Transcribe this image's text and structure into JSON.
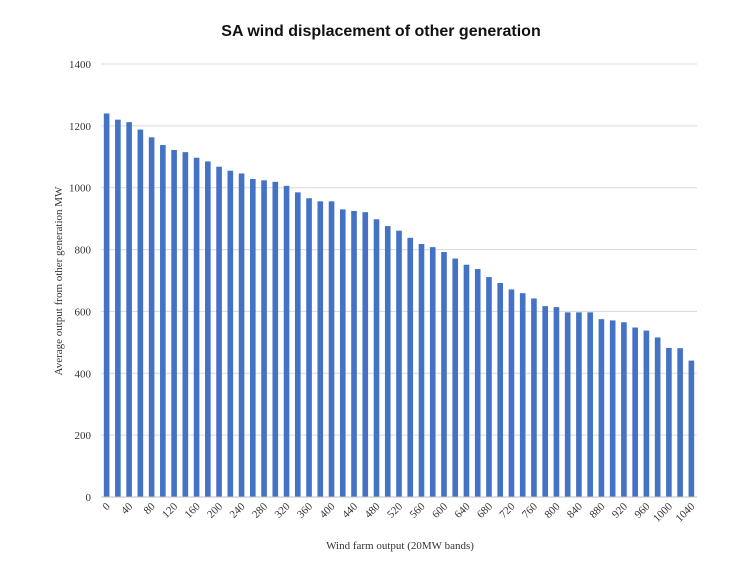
{
  "chart_data": {
    "type": "bar",
    "title": "SA wind displacement of other generation",
    "xlabel": "Wind farm output (20MW bands)",
    "ylabel": "Average output from other generation MW",
    "ylim": [
      0,
      1400
    ],
    "yticks": [
      "0",
      "200",
      "400",
      "600",
      "800",
      "1000",
      "1200",
      "1400"
    ],
    "grid": true,
    "legend": "none",
    "bar_color": "#4472C4",
    "categories": [
      "0",
      "20",
      "40",
      "60",
      "80",
      "100",
      "120",
      "140",
      "160",
      "180",
      "200",
      "220",
      "240",
      "260",
      "280",
      "300",
      "320",
      "340",
      "360",
      "380",
      "400",
      "420",
      "440",
      "460",
      "480",
      "500",
      "520",
      "540",
      "560",
      "580",
      "600",
      "620",
      "640",
      "660",
      "680",
      "700",
      "720",
      "740",
      "760",
      "780",
      "800",
      "820",
      "840",
      "860",
      "880",
      "900",
      "920",
      "940",
      "960",
      "980",
      "1000",
      "1020",
      "1040"
    ],
    "values": [
      1240,
      1220,
      1212,
      1188,
      1163,
      1138,
      1122,
      1115,
      1097,
      1085,
      1068,
      1055,
      1046,
      1028,
      1024,
      1019,
      1006,
      985,
      966,
      956,
      956,
      930,
      925,
      921,
      898,
      876,
      861,
      838,
      818,
      808,
      792,
      771,
      751,
      737,
      711,
      692,
      671,
      659,
      642,
      617,
      614,
      597,
      597,
      597,
      575,
      571,
      565,
      548,
      538,
      516,
      482,
      481,
      441
    ],
    "visible_tick_labels": [
      "0",
      "40",
      "80",
      "120",
      "160",
      "200",
      "240",
      "280",
      "320",
      "360",
      "400",
      "440",
      "480",
      "520",
      "560",
      "600",
      "640",
      "680",
      "720",
      "760",
      "800",
      "840",
      "880",
      "920",
      "960",
      "1000",
      "1040"
    ]
  }
}
